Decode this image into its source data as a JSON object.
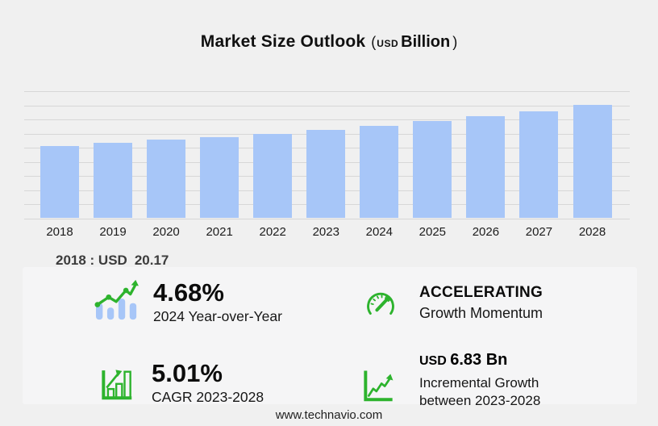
{
  "title": {
    "main": "Market Size Outlook",
    "paren_open": "(",
    "currency": "USD",
    "unit": "Billion",
    "paren_close": ")"
  },
  "chart_data": {
    "type": "bar",
    "title": "Market Size Outlook (USD Billion)",
    "categories": [
      "2018",
      "2019",
      "2020",
      "2021",
      "2022",
      "2023",
      "2024",
      "2025",
      "2026",
      "2027",
      "2028"
    ],
    "values": [
      20.17,
      20.95,
      21.81,
      22.66,
      23.57,
      24.67,
      25.82,
      27.06,
      28.36,
      29.73,
      31.5
    ],
    "labeled_value": {
      "year": "2018",
      "value": 20.17
    },
    "xlabel": "",
    "ylabel": "USD Billion",
    "ylim": [
      0,
      35.4
    ],
    "gridline_count": 10,
    "grid": "horizontal",
    "legend": "none"
  },
  "annotation": {
    "label": "2018 : USD",
    "value": "20.17"
  },
  "stats": [
    {
      "id": "yoy",
      "icon": "bar-line-growth-icon",
      "value": "4.68%",
      "label": "2024 Year-over-Year"
    },
    {
      "id": "momentum",
      "icon": "speedometer-icon",
      "value": "ACCELERATING",
      "label": "Growth Momentum"
    },
    {
      "id": "cagr",
      "icon": "bar-chart-arrow-icon",
      "value": "5.01%",
      "label": "CAGR 2023-2028"
    },
    {
      "id": "incremental",
      "icon": "growth-axes-icon",
      "value_currency": "USD",
      "value": "6.83 Bn",
      "label_line1": "Incremental Growth",
      "label_line2": "between 2023-2028"
    }
  ],
  "footer": {
    "url": "www.technavio.com"
  },
  "colors": {
    "background": "#f0f0f0",
    "panel": "#f5f5f6",
    "grid": "#d7d7d7",
    "bar_blue": "#a7c6f8",
    "accent_green": "#2db32d",
    "text_dark": "#101010",
    "annotation_gray": "#3c3c3c"
  }
}
